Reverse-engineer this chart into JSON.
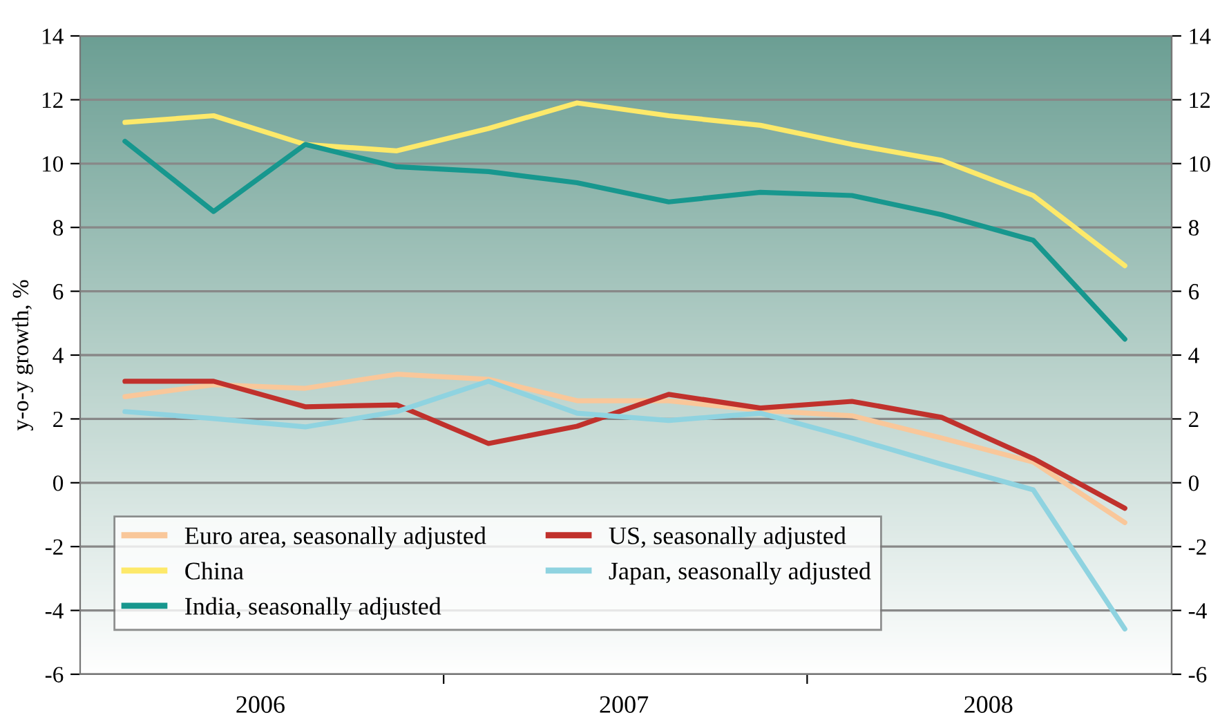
{
  "chart_data": {
    "type": "line",
    "ylabel": "y-o-y growth, %",
    "x": [
      "2006-02-15",
      "2006-05-15",
      "2006-08-15",
      "2006-11-15",
      "2007-02-15",
      "2007-05-15",
      "2007-08-15",
      "2007-11-15",
      "2008-02-15",
      "2008-05-15",
      "2008-08-15",
      "2008-11-15"
    ],
    "xlim": [
      "2006-01-01",
      "2009-01-01"
    ],
    "xticks": [
      {
        "value": "2006-07-01",
        "label": "2006"
      },
      {
        "value": "2007-07-01",
        "label": "2007"
      },
      {
        "value": "2008-07-01",
        "label": "2008"
      },
      {
        "value": "2007-01-01",
        "label": null
      },
      {
        "value": "2008-01-01",
        "label": null
      }
    ],
    "ylim": [
      -6,
      14
    ],
    "yticks": [
      -6,
      -4,
      -2,
      0,
      2,
      4,
      6,
      8,
      10,
      12,
      14
    ],
    "y2lim": [
      -6,
      14
    ],
    "y2ticks": [
      -6,
      -4,
      -2,
      0,
      2,
      4,
      6,
      8,
      10,
      12,
      14
    ],
    "grid": "y",
    "legend": "bottom left",
    "marker": "none",
    "line_style": "solid",
    "series": [
      {
        "name": "Euro area, seasonally adjusted",
        "color": "#f9c79a",
        "values": [
          2.7,
          3.07,
          2.96,
          3.4,
          3.24,
          2.57,
          2.57,
          2.27,
          2.1,
          1.4,
          0.65,
          -1.25
        ]
      },
      {
        "name": "China",
        "color": "#fde96a",
        "values": [
          11.29,
          11.5,
          10.6,
          10.4,
          11.1,
          11.9,
          11.5,
          11.2,
          10.6,
          10.1,
          9.0,
          6.8
        ]
      },
      {
        "name": "India, seasonally adjusted",
        "color": "#17978e",
        "values": [
          10.7,
          8.5,
          10.6,
          9.9,
          9.75,
          9.4,
          8.8,
          9.1,
          9.0,
          8.4,
          7.6,
          4.5
        ]
      },
      {
        "name": "US, seasonally adjusted",
        "color": "#c0312c",
        "values": [
          3.18,
          3.18,
          2.38,
          2.44,
          1.23,
          1.77,
          2.77,
          2.34,
          2.55,
          2.05,
          0.76,
          -0.8
        ]
      },
      {
        "name": "Japan, seasonally adjusted",
        "color": "#8fd3e0",
        "values": [
          2.23,
          2.01,
          1.75,
          2.23,
          3.18,
          2.18,
          1.95,
          2.18,
          1.4,
          0.58,
          -0.22,
          -4.58
        ]
      }
    ]
  }
}
